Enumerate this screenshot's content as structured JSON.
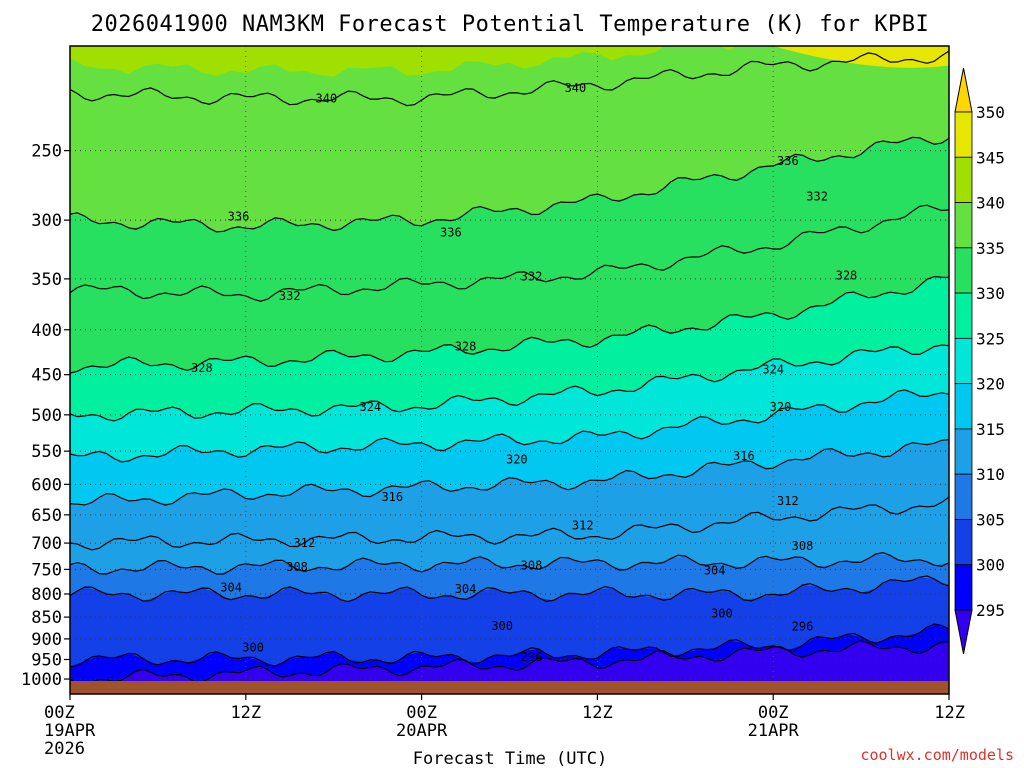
{
  "title": "2026041900 NAM3KM Forecast Potential Temperature (K) for KPBI",
  "xlabel": "Forecast Time (UTC)",
  "credit": "coolwx.com/models",
  "credit_color": "#e0302a",
  "terrain_color": "#a0522d",
  "x_ticks": [
    {
      "hour": 0,
      "lines": [
        "00Z",
        "19APR",
        "2026"
      ]
    },
    {
      "hour": 12,
      "lines": [
        "12Z"
      ]
    },
    {
      "hour": 24,
      "lines": [
        "00Z",
        "20APR"
      ]
    },
    {
      "hour": 36,
      "lines": [
        "12Z"
      ]
    },
    {
      "hour": 48,
      "lines": [
        "00Z",
        "21APR"
      ]
    },
    {
      "hour": 60,
      "lines": [
        "12Z"
      ]
    }
  ],
  "y_ticks": [
    250,
    300,
    350,
    400,
    450,
    500,
    550,
    600,
    650,
    700,
    750,
    800,
    850,
    900,
    950,
    1000
  ],
  "colorbar": {
    "levels": [
      295,
      300,
      305,
      310,
      315,
      320,
      325,
      330,
      335,
      340,
      345,
      350
    ],
    "colors": [
      "#3200ee",
      "#0000ff",
      "#1440e8",
      "#1e78e6",
      "#1ea0e6",
      "#00c8f0",
      "#00e6d8",
      "#00f0a0",
      "#28e060",
      "#64e040",
      "#a0e000",
      "#e6e600",
      "#ffd700"
    ]
  },
  "chart_data": {
    "type": "contour",
    "title": "2026041900 NAM3KM Forecast Potential Temperature (K) for KPBI",
    "xlabel": "Forecast Time (UTC)",
    "ylabel": "",
    "x_range_hours": [
      0,
      60
    ],
    "y_range_hpa": [
      190,
      1040
    ],
    "y_scale": "log",
    "grid": true,
    "contour_interval_K": 4,
    "fill_interval_K": 5,
    "isentropes": [
      {
        "theta": 296,
        "p": [
          1000,
          985,
          970,
          955,
          930,
          915
        ]
      },
      {
        "theta": 300,
        "p": [
          950,
          948,
          946,
          935,
          915,
          880
        ]
      },
      {
        "theta": 304,
        "p": [
          800,
          800,
          800,
          800,
          800,
          770
        ]
      },
      {
        "theta": 308,
        "p": [
          748,
          745,
          740,
          738,
          735,
          730
        ]
      },
      {
        "theta": 312,
        "p": [
          700,
          695,
          690,
          685,
          655,
          630
        ]
      },
      {
        "theta": 316,
        "p": [
          630,
          615,
          605,
          595,
          565,
          540
        ]
      },
      {
        "theta": 320,
        "p": [
          560,
          548,
          540,
          530,
          500,
          470
        ]
      },
      {
        "theta": 324,
        "p": [
          500,
          495,
          488,
          470,
          440,
          415
        ]
      },
      {
        "theta": 328,
        "p": [
          440,
          435,
          425,
          410,
          385,
          350
        ]
      },
      {
        "theta": 332,
        "p": [
          360,
          365,
          355,
          345,
          320,
          290
        ]
      },
      {
        "theta": 336,
        "p": [
          300,
          305,
          300,
          285,
          260,
          240
        ]
      },
      {
        "theta": 340,
        "p": [
          215,
          218,
          218,
          210,
          200,
          195
        ]
      }
    ],
    "isentrope_hours": [
      0,
      12,
      24,
      36,
      48,
      60
    ],
    "contour_labels": [
      {
        "text": "340",
        "hour": 17.5,
        "p": 218
      },
      {
        "text": "340",
        "hour": 34.5,
        "p": 212
      },
      {
        "text": "336",
        "hour": 11.5,
        "p": 297
      },
      {
        "text": "336",
        "hour": 26,
        "p": 310
      },
      {
        "text": "336",
        "hour": 49,
        "p": 257
      },
      {
        "text": "332",
        "hour": 15,
        "p": 366
      },
      {
        "text": "332",
        "hour": 31.5,
        "p": 348
      },
      {
        "text": "332",
        "hour": 51,
        "p": 282
      },
      {
        "text": "328",
        "hour": 9,
        "p": 442
      },
      {
        "text": "328",
        "hour": 27,
        "p": 418
      },
      {
        "text": "328",
        "hour": 53,
        "p": 347
      },
      {
        "text": "324",
        "hour": 20.5,
        "p": 490
      },
      {
        "text": "324",
        "hour": 48,
        "p": 444
      },
      {
        "text": "320",
        "hour": 30.5,
        "p": 562
      },
      {
        "text": "320",
        "hour": 48.5,
        "p": 490
      },
      {
        "text": "316",
        "hour": 22,
        "p": 620
      },
      {
        "text": "316",
        "hour": 46,
        "p": 557
      },
      {
        "text": "312",
        "hour": 16,
        "p": 700
      },
      {
        "text": "312",
        "hour": 35,
        "p": 668
      },
      {
        "text": "312",
        "hour": 49,
        "p": 627
      },
      {
        "text": "308",
        "hour": 15.5,
        "p": 745
      },
      {
        "text": "308",
        "hour": 31.5,
        "p": 742
      },
      {
        "text": "308",
        "hour": 50,
        "p": 705
      },
      {
        "text": "304",
        "hour": 11,
        "p": 786
      },
      {
        "text": "304",
        "hour": 27,
        "p": 790
      },
      {
        "text": "304",
        "hour": 44,
        "p": 752
      },
      {
        "text": "300",
        "hour": 12.5,
        "p": 920
      },
      {
        "text": "300",
        "hour": 29.5,
        "p": 870
      },
      {
        "text": "300",
        "hour": 44.5,
        "p": 842
      },
      {
        "text": "296",
        "hour": 31.5,
        "p": 944
      },
      {
        "text": "296",
        "hour": 50,
        "p": 871
      }
    ]
  }
}
